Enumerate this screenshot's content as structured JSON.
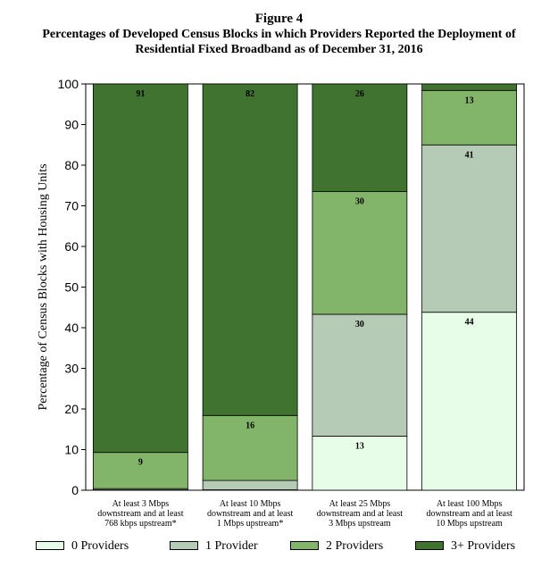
{
  "figure_label": "Figure 4",
  "title_line1": "Percentages of Developed Census Blocks in which Providers Reported the Deployment of",
  "title_line2": "Residential Fixed Broadband as of December 31, 2016",
  "chart_data": {
    "type": "bar",
    "stacked": true,
    "title": "Percentages of Developed Census Blocks in which Providers Reported the Deployment of Residential Fixed Broadband as of December 31, 2016",
    "ylabel": "Percentage of Census Blocks with Housing Units",
    "xlabel": "",
    "ylim": [
      0,
      100
    ],
    "yticks": [
      0,
      10,
      20,
      30,
      40,
      50,
      60,
      70,
      80,
      90,
      100
    ],
    "categories": [
      [
        "At least 3 Mbps",
        "downstream and at least",
        "768 kbps upstream*"
      ],
      [
        "At least 10 Mbps",
        "downstream and at least",
        "1 Mbps upstream*"
      ],
      [
        "At least 25 Mbps",
        "downstream and at least",
        "3 Mbps upstream"
      ],
      [
        "At least 100 Mbps",
        "downstream and at least",
        "10 Mbps upstream"
      ]
    ],
    "series": [
      {
        "name": "0 Providers",
        "color": "#e8fde8",
        "values": [
          0.1,
          0.1,
          13.3,
          43.8
        ]
      },
      {
        "name": "1 Provider",
        "color": "#b5cbb5",
        "values": [
          0.3,
          2.3,
          30.0,
          41.2
        ]
      },
      {
        "name": "2 Providers",
        "color": "#82b46a",
        "values": [
          8.9,
          16.0,
          30.2,
          13.4
        ]
      },
      {
        "name": "3+ Providers",
        "color": "#417330",
        "values": [
          90.7,
          81.6,
          26.5,
          1.6
        ]
      }
    ],
    "data_labels": [
      [
        "",
        "",
        "9",
        "91"
      ],
      [
        "",
        "",
        "16",
        "82"
      ],
      [
        "13",
        "30",
        "30",
        "26"
      ],
      [
        "44",
        "41",
        "13",
        ""
      ]
    ],
    "legend_position": "bottom",
    "grid": false
  }
}
